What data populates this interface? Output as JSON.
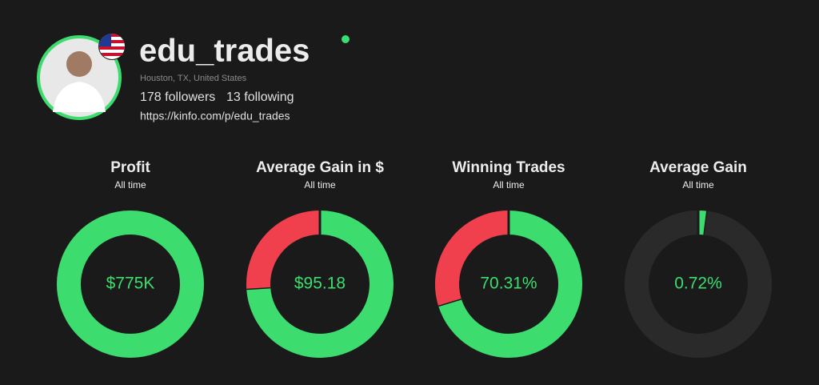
{
  "profile": {
    "username": "edu_trades",
    "location": "Houston, TX, United States",
    "followers": "178 followers",
    "following": "13 following",
    "link": "https://kinfo.com/p/edu_trades"
  },
  "stats": [
    {
      "title": "Profit",
      "subtitle": "All time",
      "center_label": "$775K",
      "segments": [
        {
          "color": "#3ddc6e",
          "value": 100
        }
      ]
    },
    {
      "title": "Average Gain in $",
      "subtitle": "All time",
      "center_label": "$95.18",
      "segments": [
        {
          "color": "#3ddc6e",
          "value": 74
        },
        {
          "color": "#f0404d",
          "value": 26
        }
      ]
    },
    {
      "title": "Winning Trades",
      "subtitle": "All time",
      "center_label": "70.31%",
      "segments": [
        {
          "color": "#3ddc6e",
          "value": 70.31
        },
        {
          "color": "#f0404d",
          "value": 29.69
        }
      ]
    },
    {
      "title": "Average Gain",
      "subtitle": "All time",
      "center_label": "0.72%",
      "segments": [
        {
          "color": "#3ddc6e",
          "value": 2
        },
        {
          "color": "#2a2a2a",
          "value": 98
        }
      ]
    }
  ]
}
